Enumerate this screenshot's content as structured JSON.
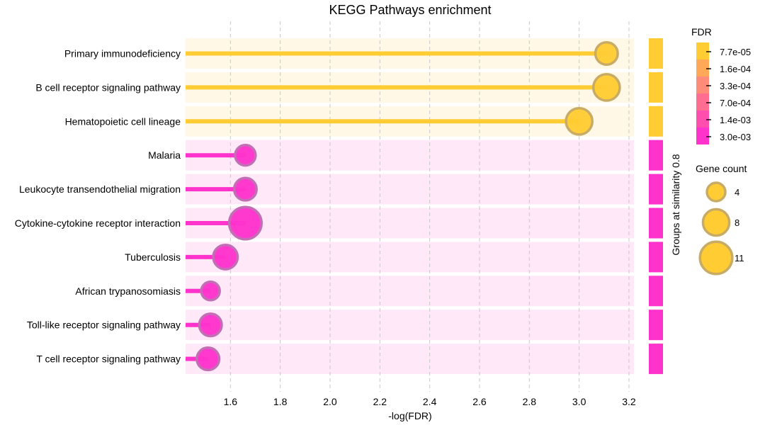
{
  "chart_data": {
    "type": "scatter",
    "subtype": "lollipop",
    "title": "KEGG Pathways enrichment",
    "xlabel": "-log(FDR)",
    "group_axis_label": "Groups at similarity 0.8",
    "xlim": [
      1.42,
      3.22
    ],
    "xticks": [
      1.6,
      1.8,
      2.0,
      2.2,
      2.4,
      2.6,
      2.8,
      3.0,
      3.2
    ],
    "xtick_labels": [
      "1.6",
      "1.8",
      "2.0",
      "2.2",
      "2.4",
      "2.6",
      "2.8",
      "3.0",
      "3.2"
    ],
    "grid": "vertical dashed",
    "groups": [
      {
        "id": 1,
        "color": "#FFCC33",
        "band_color": "#FFF8E6"
      },
      {
        "id": 2,
        "color": "#FF33CC",
        "band_color": "#FFE8F8"
      }
    ],
    "categories": [
      "Primary immunodeficiency",
      "B cell receptor signaling pathway",
      "Hematopoietic cell lineage",
      "Malaria",
      "Leukocyte transendothelial migration",
      "Cytokine-cytokine receptor interaction",
      "Tuberculosis",
      "African trypanosomiasis",
      "Toll-like receptor signaling pathway",
      "T cell receptor signaling pathway"
    ],
    "values": [
      3.11,
      3.11,
      3.0,
      1.66,
      1.66,
      1.66,
      1.58,
      1.52,
      1.52,
      1.51
    ],
    "gene_count": [
      6,
      8,
      8,
      5,
      6,
      11,
      7,
      4,
      6,
      6
    ],
    "group": [
      1,
      1,
      1,
      2,
      2,
      2,
      2,
      2,
      2,
      2
    ],
    "fdr_legend": {
      "title": "FDR",
      "colors": [
        "#FFCC33",
        "#FFA858",
        "#FF8C78",
        "#FF6E90",
        "#FF4EAE",
        "#FF33CC"
      ],
      "labels": [
        "7.7e-05",
        "1.6e-04",
        "3.3e-04",
        "7.0e-04",
        "1.4e-03",
        "3.0e-03"
      ]
    },
    "size_legend": {
      "title": "Gene count",
      "values": [
        4,
        8,
        11
      ],
      "labels": [
        "4",
        "8",
        "11"
      ],
      "color": "#FFCC33"
    }
  }
}
